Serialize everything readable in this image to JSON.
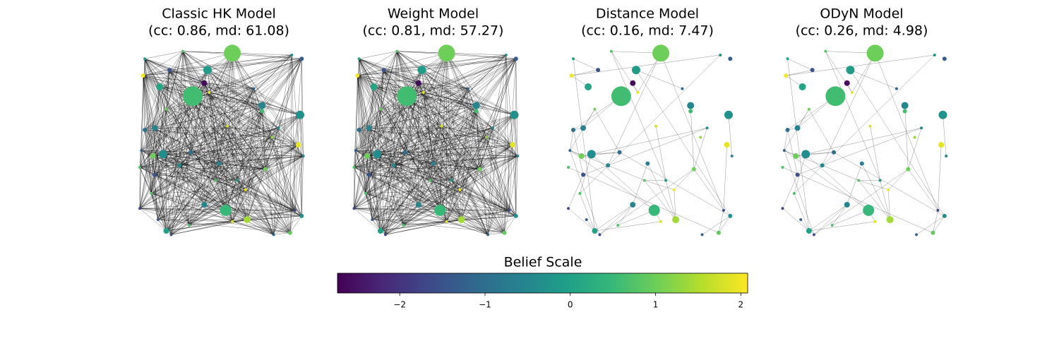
{
  "chart_data": {
    "type": "network",
    "colormap": "viridis",
    "panels": [
      {
        "title": "Classic HK Model",
        "subtitle": "(cc: 0.86, md: 61.08)",
        "edges": "dense"
      },
      {
        "title": "Weight Model",
        "subtitle": "(cc: 0.81, md: 57.27)",
        "edges": "dense"
      },
      {
        "title": "Distance Model",
        "subtitle": "(cc: 0.16, md: 7.47)",
        "edges": "sparse"
      },
      {
        "title": "ODyN Model",
        "subtitle": "(cc: 0.26, md: 4.98)",
        "edges": "sparse"
      }
    ],
    "nodes": [
      {
        "x": 0.56,
        "y": 0.98,
        "belief": 1.0,
        "size": 144
      },
      {
        "x": 0.32,
        "y": 0.75,
        "belief": 0.6,
        "size": 196
      },
      {
        "x": 0.52,
        "y": 0.14,
        "belief": 0.5,
        "size": 64
      },
      {
        "x": 0.97,
        "y": 0.65,
        "belief": -0.3,
        "size": 36
      },
      {
        "x": 0.41,
        "y": 0.89,
        "belief": -0.1,
        "size": 36
      },
      {
        "x": 0.14,
        "y": 0.44,
        "belief": -0.4,
        "size": 36
      },
      {
        "x": 0.12,
        "y": 0.8,
        "belief": 0.1,
        "size": 25
      },
      {
        "x": 0.74,
        "y": 0.7,
        "belief": -0.5,
        "size": 25
      },
      {
        "x": 0.65,
        "y": 0.09,
        "belief": 1.4,
        "size": 25
      },
      {
        "x": 0.96,
        "y": 0.49,
        "belief": 1.9,
        "size": 16
      },
      {
        "x": 0.08,
        "y": 0.43,
        "belief": 1.0,
        "size": 16
      },
      {
        "x": 0.16,
        "y": 0.03,
        "belief": 0.0,
        "size": 16
      },
      {
        "x": 0.39,
        "y": 0.17,
        "belief": -0.5,
        "size": 16
      },
      {
        "x": 0.18,
        "y": 0.89,
        "belief": -1.5,
        "size": 9
      },
      {
        "x": 0.02,
        "y": 0.86,
        "belief": 2.0,
        "size": 9
      },
      {
        "x": 0.39,
        "y": 0.82,
        "belief": -2.6,
        "size": 16
      },
      {
        "x": 0.03,
        "y": 0.95,
        "belief": 0.0,
        "size": 4
      },
      {
        "x": 0.26,
        "y": 0.99,
        "belief": 0.8,
        "size": 4
      },
      {
        "x": 0.92,
        "y": 0.97,
        "belief": -0.3,
        "size": 4
      },
      {
        "x": 0.98,
        "y": 0.95,
        "belief": -1.3,
        "size": 9
      },
      {
        "x": 0.03,
        "y": 0.57,
        "belief": -1.0,
        "size": 9
      },
      {
        "x": 0.09,
        "y": 0.58,
        "belief": -0.6,
        "size": 16
      },
      {
        "x": 0.01,
        "y": 0.46,
        "belief": -1.2,
        "size": 4
      },
      {
        "x": 0.0,
        "y": 0.37,
        "belief": 0.7,
        "size": 4
      },
      {
        "x": 0.09,
        "y": 0.33,
        "belief": -1.5,
        "size": 9
      },
      {
        "x": 0.07,
        "y": 0.23,
        "belief": 0.7,
        "size": 4
      },
      {
        "x": 0.0,
        "y": 0.15,
        "belief": -1.6,
        "size": 4
      },
      {
        "x": 0.11,
        "y": 0.09,
        "belief": -1.3,
        "size": 4
      },
      {
        "x": 0.19,
        "y": 0.01,
        "belief": -1.6,
        "size": 4
      },
      {
        "x": 0.3,
        "y": 0.06,
        "belief": 0.7,
        "size": 4
      },
      {
        "x": 0.81,
        "y": 0.01,
        "belief": -1.2,
        "size": 4
      },
      {
        "x": 0.91,
        "y": 0.02,
        "belief": 0.9,
        "size": 9
      },
      {
        "x": 0.98,
        "y": 0.11,
        "belief": -0.3,
        "size": 9
      },
      {
        "x": 0.94,
        "y": 0.14,
        "belief": -1.6,
        "size": 4
      },
      {
        "x": 0.99,
        "y": 0.43,
        "belief": -0.6,
        "size": 4
      },
      {
        "x": 0.74,
        "y": 0.67,
        "belief": 0.6,
        "size": 9
      },
      {
        "x": 0.53,
        "y": 0.59,
        "belief": 1.8,
        "size": 4
      },
      {
        "x": 0.64,
        "y": 0.25,
        "belief": 2.0,
        "size": 4
      },
      {
        "x": 0.31,
        "y": 0.45,
        "belief": -1.0,
        "size": 9
      },
      {
        "x": 0.24,
        "y": 0.38,
        "belief": -0.5,
        "size": 9
      },
      {
        "x": 0.76,
        "y": 0.36,
        "belief": 1.0,
        "size": 9
      },
      {
        "x": 0.59,
        "y": 0.3,
        "belief": -0.2,
        "size": 4
      },
      {
        "x": 0.48,
        "y": 0.39,
        "belief": -0.6,
        "size": 9
      },
      {
        "x": 0.8,
        "y": 0.53,
        "belief": 1.3,
        "size": 4
      },
      {
        "x": 0.42,
        "y": 0.77,
        "belief": 1.9,
        "size": 4
      },
      {
        "x": 0.69,
        "y": 0.79,
        "belief": -1.2,
        "size": 4
      },
      {
        "x": 0.46,
        "y": 0.3,
        "belief": 0.8,
        "size": 4
      },
      {
        "x": 0.16,
        "y": 0.68,
        "belief": 1.0,
        "size": 4
      },
      {
        "x": 0.56,
        "y": 0.08,
        "belief": 1.8,
        "size": 4
      },
      {
        "x": 0.84,
        "y": 0.58,
        "belief": -0.5,
        "size": 4
      }
    ],
    "colorbar": {
      "title": "Belief Scale",
      "xlim": [
        -2.73,
        2.08
      ],
      "xticks": [
        {
          "value": -2,
          "label": "−2"
        },
        {
          "value": -1,
          "label": "−1"
        },
        0,
        1,
        2
      ]
    }
  }
}
